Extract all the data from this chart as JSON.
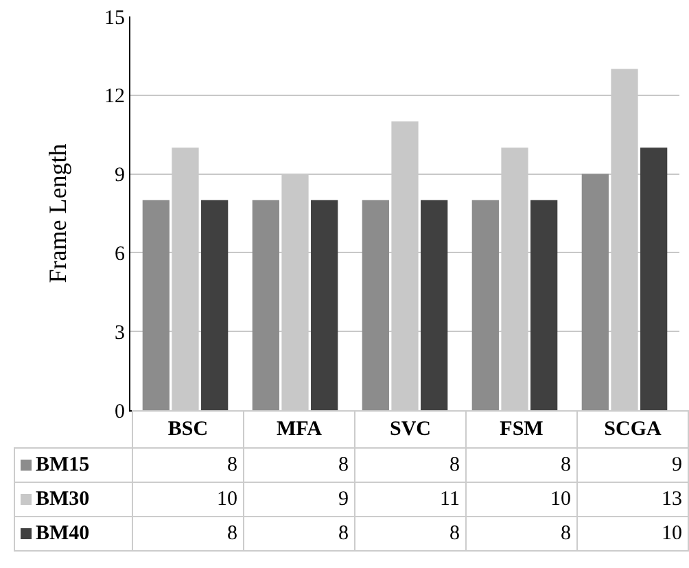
{
  "chart_data": {
    "type": "bar",
    "ylabel": "Frame Length",
    "categories": [
      "BSC",
      "MFA",
      "SVC",
      "FSM",
      "SCGA"
    ],
    "series": [
      {
        "name": "BM15",
        "color": "#8c8c8c",
        "values": [
          8,
          8,
          8,
          8,
          9
        ]
      },
      {
        "name": "BM30",
        "color": "#c8c8c8",
        "values": [
          10,
          9,
          11,
          10,
          13
        ]
      },
      {
        "name": "BM40",
        "color": "#404040",
        "values": [
          8,
          8,
          8,
          8,
          10
        ]
      }
    ],
    "ylim": [
      0,
      15
    ],
    "yticks": [
      0,
      3,
      6,
      9,
      12,
      15
    ],
    "grid": "y",
    "legend": "bottom left",
    "tick_labels": "y",
    "data_labels": true
  }
}
